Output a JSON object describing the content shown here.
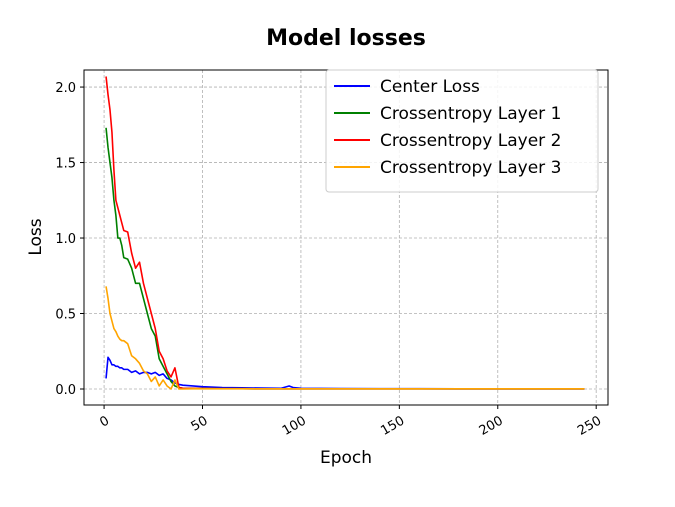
{
  "chart_data": {
    "type": "line",
    "title": "Model losses",
    "x_label": "Epoch",
    "y_label": "Loss",
    "x": [
      1,
      2,
      3,
      4,
      5,
      6,
      7,
      8,
      9,
      10,
      12,
      14,
      16,
      18,
      20,
      22,
      24,
      26,
      28,
      30,
      32,
      34,
      36,
      38,
      40,
      45,
      50,
      60,
      70,
      80,
      90,
      94,
      96,
      100,
      120,
      140,
      160,
      180,
      200,
      220,
      244
    ],
    "series": [
      {
        "name": "Center Loss",
        "color": "#0000ff",
        "values": [
          0.07,
          0.21,
          0.19,
          0.16,
          0.16,
          0.15,
          0.15,
          0.14,
          0.14,
          0.13,
          0.13,
          0.11,
          0.12,
          0.1,
          0.11,
          0.11,
          0.1,
          0.11,
          0.09,
          0.1,
          0.07,
          0.06,
          0.04,
          0.03,
          0.025,
          0.02,
          0.015,
          0.01,
          0.008,
          0.006,
          0.005,
          0.02,
          0.01,
          0.005,
          0.003,
          0.002,
          0.002,
          0.001,
          0.001,
          0.001,
          0.001
        ]
      },
      {
        "name": "Crossentropy Layer 1",
        "color": "#008000",
        "values": [
          1.73,
          1.6,
          1.5,
          1.4,
          1.25,
          1.15,
          1.0,
          1.0,
          0.95,
          0.87,
          0.86,
          0.8,
          0.7,
          0.7,
          0.6,
          0.5,
          0.4,
          0.35,
          0.2,
          0.15,
          0.1,
          0.05,
          0.02,
          0.01,
          0.005,
          0.004,
          0.003,
          0.002,
          0.002,
          0.001,
          0.001,
          0.001,
          0.001,
          0.001,
          0.001,
          0.001,
          0.001,
          0.001,
          0.001,
          0.001,
          0.001
        ]
      },
      {
        "name": "Crossentropy Layer 2",
        "color": "#ff0000",
        "values": [
          2.07,
          1.95,
          1.85,
          1.7,
          1.45,
          1.25,
          1.2,
          1.15,
          1.1,
          1.05,
          1.04,
          0.9,
          0.8,
          0.84,
          0.7,
          0.6,
          0.5,
          0.4,
          0.25,
          0.2,
          0.12,
          0.08,
          0.14,
          0.01,
          0.005,
          0.004,
          0.003,
          0.002,
          0.002,
          0.001,
          0.001,
          0.001,
          0.001,
          0.001,
          0.001,
          0.001,
          0.001,
          0.001,
          0.001,
          0.001,
          0.001
        ]
      },
      {
        "name": "Crossentropy Layer 3",
        "color": "#ffa500",
        "values": [
          0.68,
          0.6,
          0.5,
          0.45,
          0.4,
          0.38,
          0.35,
          0.33,
          0.32,
          0.32,
          0.3,
          0.22,
          0.2,
          0.17,
          0.12,
          0.1,
          0.05,
          0.08,
          0.02,
          0.06,
          0.02,
          0.0,
          0.06,
          0.0,
          0.0,
          0.001,
          0.001,
          0.001,
          0.001,
          0.001,
          0.001,
          0.001,
          0.001,
          0.001,
          0.001,
          0.001,
          0.001,
          0.001,
          0.001,
          0.001,
          0.001
        ]
      }
    ],
    "xlim": [
      -10.2,
      256
    ],
    "ylim": [
      -0.106,
      2.113
    ],
    "xticks": [
      0,
      50,
      100,
      150,
      200,
      250
    ],
    "yticks": [
      {
        "value": 0,
        "label": "0.0"
      },
      0.5,
      {
        "value": 1,
        "label": "1.0"
      },
      1.5,
      {
        "value": 2,
        "label": "2.0"
      }
    ],
    "grid": true,
    "legend": "upper right"
  }
}
